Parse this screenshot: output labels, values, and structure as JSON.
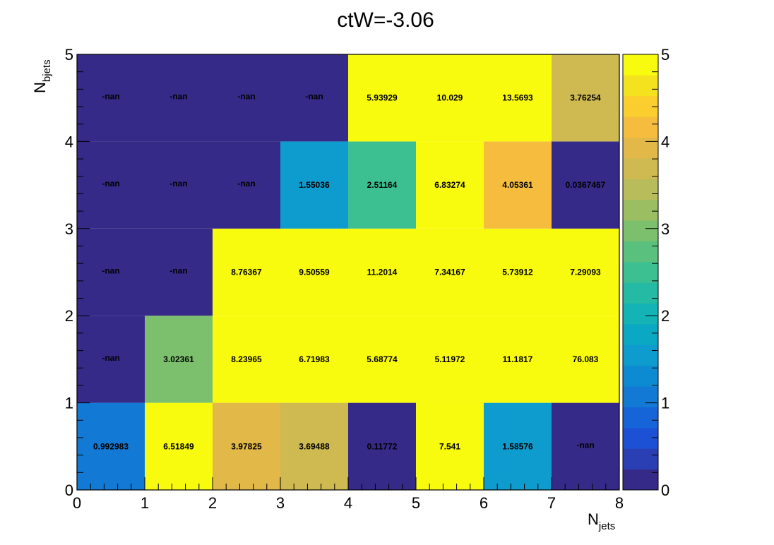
{
  "chart_data": {
    "type": "heatmap",
    "title": "ctW=-3.06",
    "xlabel": {
      "main": "N",
      "sub": "jets"
    },
    "ylabel": {
      "main": "N",
      "sub": "bjets"
    },
    "xlim": [
      0,
      8
    ],
    "ylim": [
      0,
      5
    ],
    "zlim": [
      0,
      5
    ],
    "x_ticks": [
      "0",
      "1",
      "2",
      "3",
      "4",
      "5",
      "6",
      "7",
      "8"
    ],
    "y_ticks": [
      "0",
      "1",
      "2",
      "3",
      "4",
      "5"
    ],
    "z_ticks": [
      "0",
      "1",
      "2",
      "3",
      "4",
      "5"
    ],
    "rows": [
      {
        "y": [
          0,
          1
        ],
        "labels": [
          "0.992983",
          "6.51849",
          "3.97825",
          "3.69488",
          "0.11772",
          "7.541",
          "1.58576",
          "-nan"
        ],
        "values": [
          0.992983,
          6.51849,
          3.97825,
          3.69488,
          0.11772,
          7.541,
          1.58576,
          null
        ]
      },
      {
        "y": [
          1,
          2
        ],
        "labels": [
          "-nan",
          "3.02361",
          "8.23965",
          "6.71983",
          "5.68774",
          "5.11972",
          "11.1817",
          "76.083"
        ],
        "values": [
          null,
          3.02361,
          8.23965,
          6.71983,
          5.68774,
          5.11972,
          11.1817,
          76.083
        ]
      },
      {
        "y": [
          2,
          3
        ],
        "labels": [
          "-nan",
          "-nan",
          "8.76367",
          "9.50559",
          "11.2014",
          "7.34167",
          "5.73912",
          "7.29093"
        ],
        "values": [
          null,
          null,
          8.76367,
          9.50559,
          11.2014,
          7.34167,
          5.73912,
          7.29093
        ]
      },
      {
        "y": [
          3,
          4
        ],
        "labels": [
          "-nan",
          "-nan",
          "-nan",
          "1.55036",
          "2.51164",
          "6.83274",
          "4.05361",
          "0.0367467"
        ],
        "values": [
          null,
          null,
          null,
          1.55036,
          2.51164,
          6.83274,
          4.05361,
          0.0367467
        ]
      },
      {
        "y": [
          4,
          5
        ],
        "labels": [
          "-nan",
          "-nan",
          "-nan",
          "-nan",
          "5.93929",
          "10.029",
          "13.5693",
          "3.76254"
        ],
        "values": [
          null,
          null,
          null,
          null,
          5.93929,
          10.029,
          13.5693,
          3.76254
        ]
      }
    ],
    "palette": [
      "#352a87",
      "#2a3fb3",
      "#1c51d6",
      "#1565d9",
      "#1279d5",
      "#0d8bd2",
      "#0e9bcd",
      "#0aa8c2",
      "#14b3b5",
      "#25baa4",
      "#3cbf91",
      "#59c17d",
      "#7cc06d",
      "#9cbe62",
      "#b8bc5a",
      "#cfba51",
      "#e2b848",
      "#f5bc3e",
      "#fbcd2e",
      "#f4e21e",
      "#f9fb0e"
    ],
    "nan_color": "#352a87",
    "grid": false,
    "legend": "colorbar-right"
  }
}
